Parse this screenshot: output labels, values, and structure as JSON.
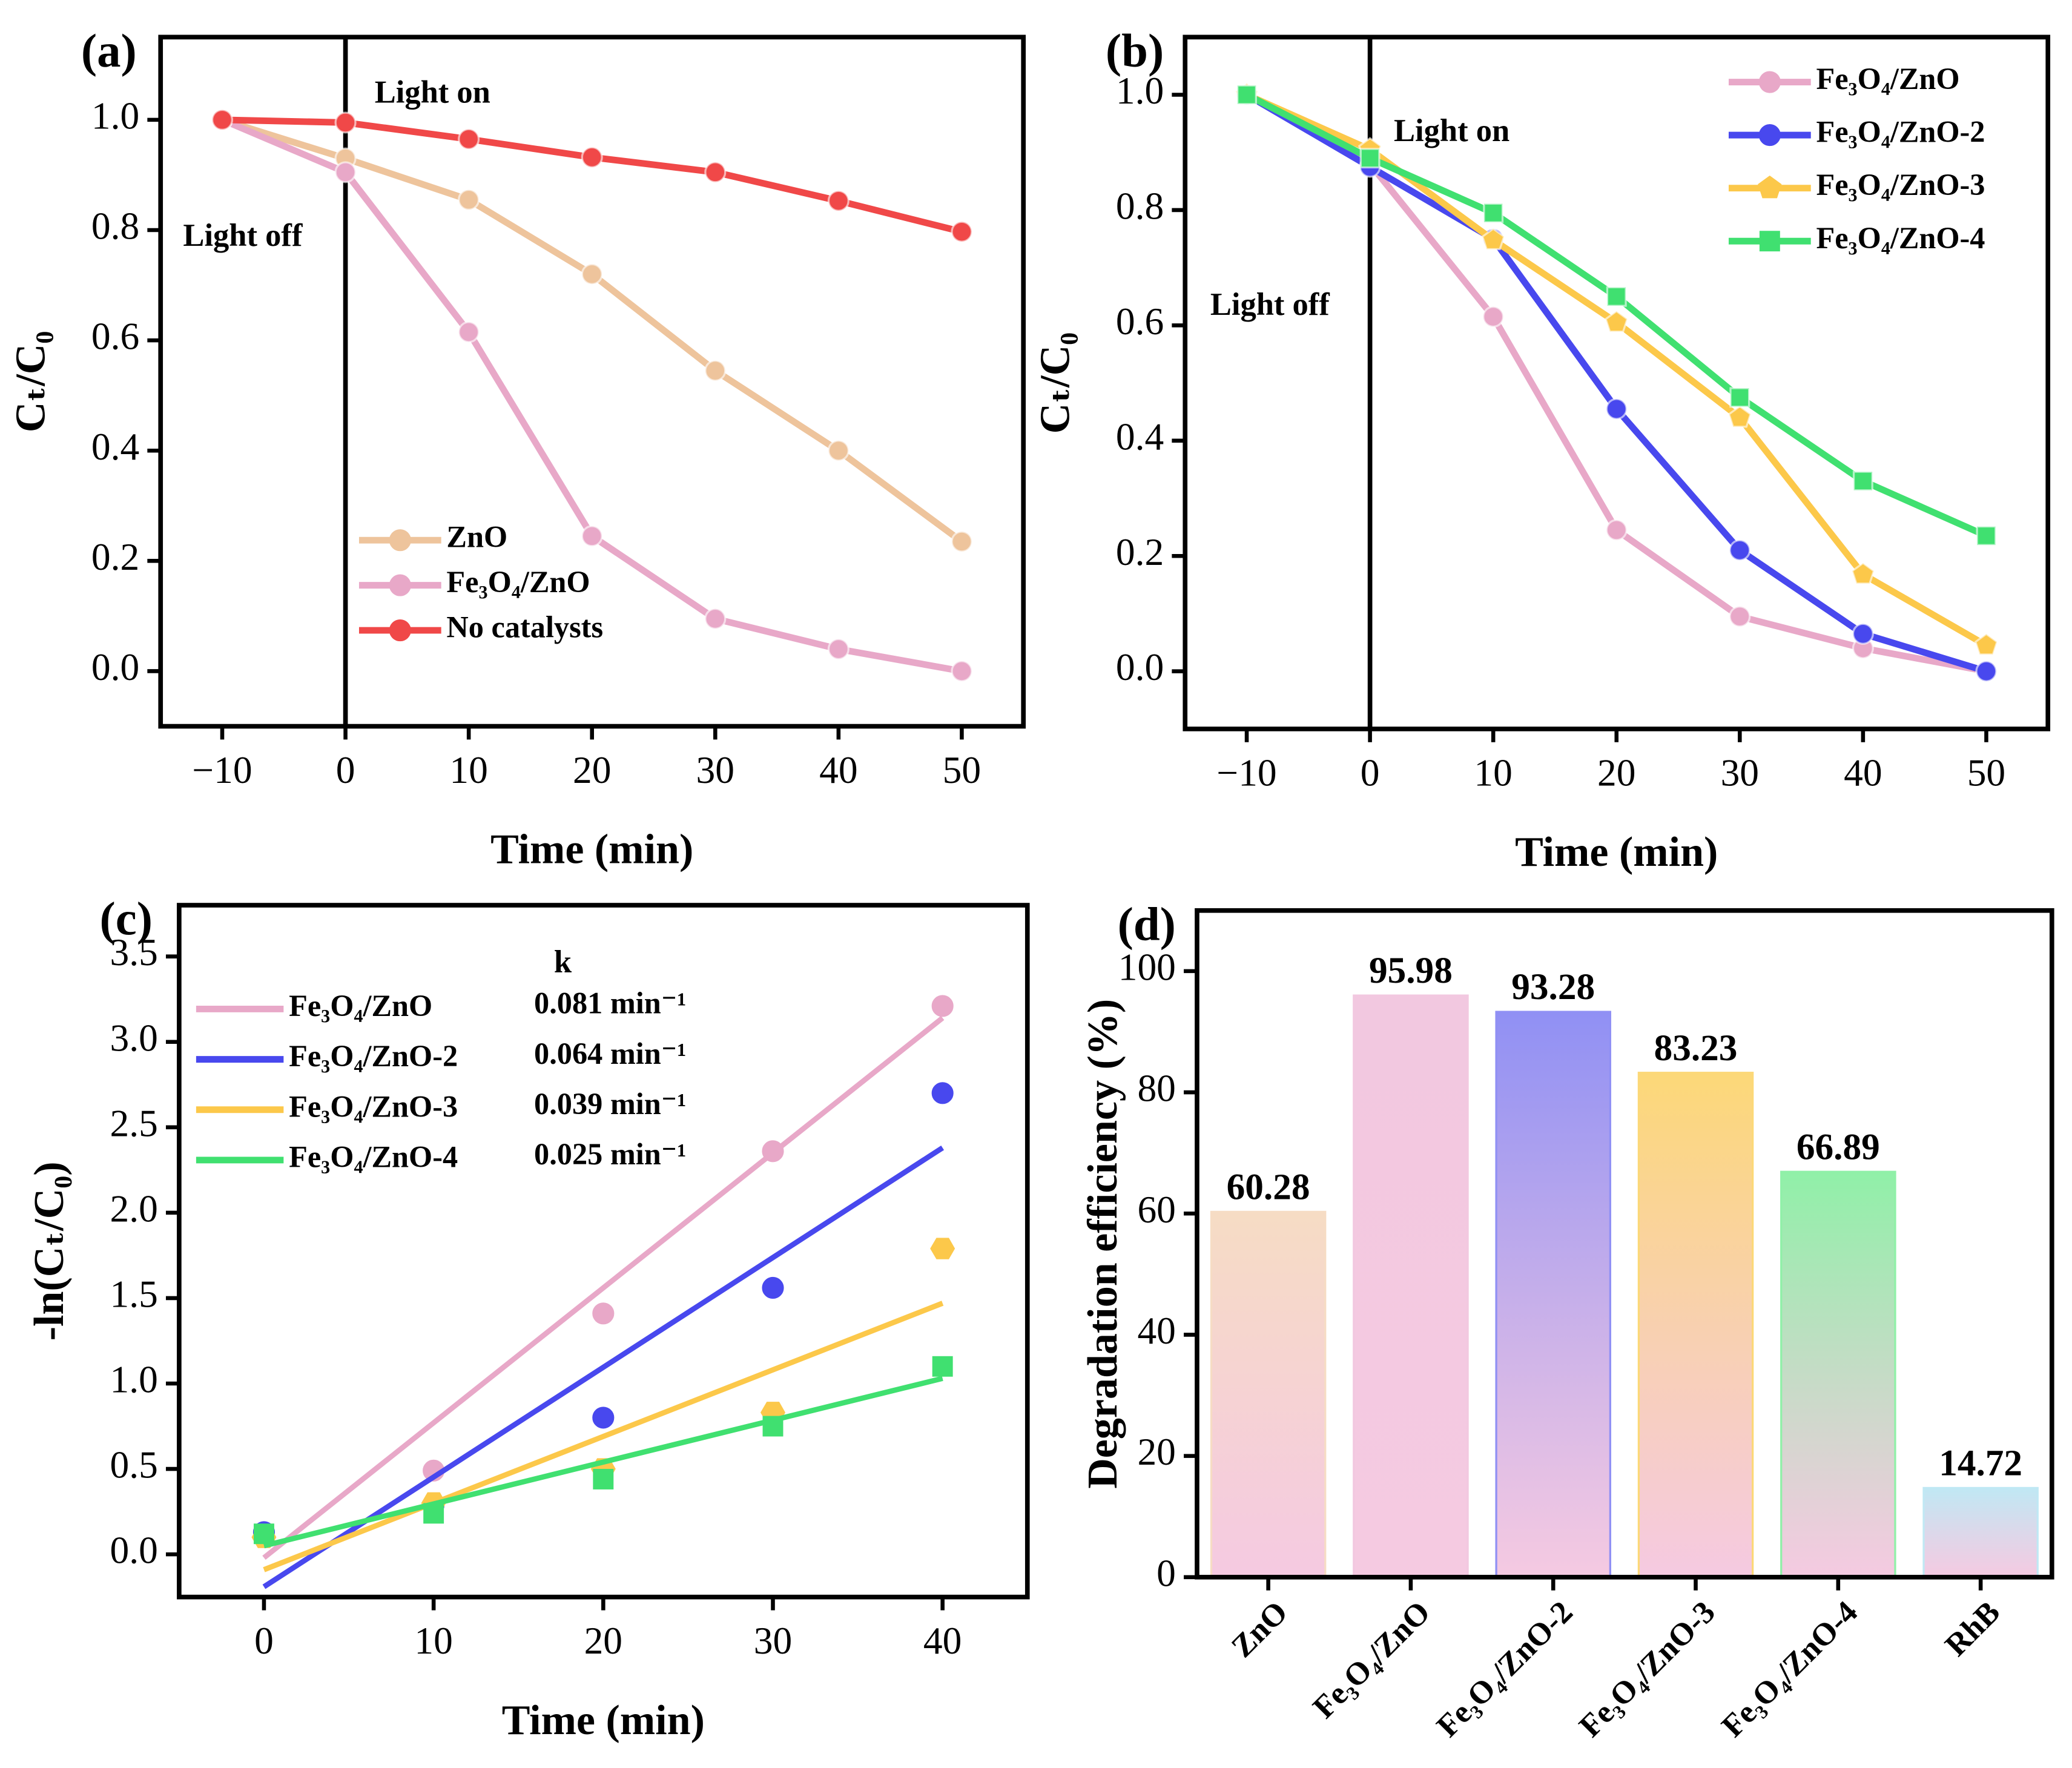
{
  "chart_data": [
    {
      "type": "line",
      "panel": "(a)",
      "xlabel": "Time (min)",
      "ylabel": "Cₜ/C₀",
      "x": [
        -10,
        0,
        10,
        20,
        30,
        40,
        50
      ],
      "series": [
        {
          "name": "ZnO",
          "color": "#eec49c",
          "marker": "circle",
          "values": [
            1.0,
            0.93,
            0.855,
            0.72,
            0.545,
            0.4,
            0.235
          ]
        },
        {
          "name": "Fe₃O₄/ZnO",
          "color": "#e8a8c8",
          "marker": "circle",
          "values": [
            1.0,
            0.905,
            0.615,
            0.245,
            0.095,
            0.04,
            0.0
          ]
        },
        {
          "name": "No catalysts",
          "color": "#f04848",
          "marker": "circle",
          "values": [
            1.0,
            0.995,
            0.965,
            0.932,
            0.905,
            0.853,
            0.797
          ]
        }
      ],
      "xlim": [
        -15,
        55
      ],
      "xticks": [
        {
          "value": -10,
          "label": "−10"
        },
        0,
        10,
        20,
        30,
        40,
        50
      ],
      "ylim": [
        -0.1,
        1.15
      ],
      "yticks": [
        {
          "value": 0,
          "label": "0.0"
        },
        0.2,
        0.4,
        0.6,
        0.8,
        {
          "value": 1,
          "label": "1.0"
        }
      ],
      "vline": 0,
      "annotations": [
        "Light on",
        "Light off"
      ],
      "legend": "lower center"
    },
    {
      "type": "line",
      "panel": "(b)",
      "xlabel": "Time (min)",
      "ylabel": "Cₜ/C₀",
      "x": [
        -10,
        0,
        10,
        20,
        30,
        40,
        50
      ],
      "series": [
        {
          "name": "Fe₃O₄/ZnO",
          "color": "#e8a8c8",
          "marker": "circle",
          "values": [
            1.0,
            0.88,
            0.615,
            0.245,
            0.095,
            0.04,
            0.0
          ]
        },
        {
          "name": "Fe₃O₄/ZnO-2",
          "color": "#4848ee",
          "marker": "circle",
          "values": [
            1.0,
            0.875,
            0.75,
            0.455,
            0.21,
            0.065,
            0.0
          ]
        },
        {
          "name": "Fe₃O₄/ZnO-3",
          "color": "#fcc84a",
          "marker": "diamond",
          "values": [
            1.0,
            0.905,
            0.748,
            0.605,
            0.44,
            0.168,
            0.045
          ]
        },
        {
          "name": "Fe₃O₄/ZnO-4",
          "color": "#40e070",
          "marker": "square",
          "values": [
            1.0,
            0.89,
            0.795,
            0.65,
            0.475,
            0.33,
            0.235
          ]
        }
      ],
      "xlim": [
        -15,
        55
      ],
      "xticks": [
        {
          "value": -10,
          "label": "−10"
        },
        0,
        10,
        20,
        30,
        40,
        50
      ],
      "ylim": [
        -0.1,
        1.1
      ],
      "yticks": [
        {
          "value": 0,
          "label": "0.0"
        },
        0.2,
        0.4,
        0.6,
        0.8,
        {
          "value": 1,
          "label": "1.0"
        }
      ],
      "vline": 0,
      "annotations": [
        "Light on",
        "Light off"
      ],
      "legend": "upper right"
    },
    {
      "type": "scatter",
      "panel": "(c)",
      "xlabel": "Time (min)",
      "ylabel": "-ln(Cₜ/C₀)",
      "x": [
        0,
        10,
        20,
        30,
        40
      ],
      "series": [
        {
          "name": "Fe₃O₄/ZnO",
          "color": "#e8a8c8",
          "marker": "circle",
          "values": [
            0.11,
            0.49,
            1.41,
            2.36,
            3.21
          ],
          "fit": [
            -0.02,
            3.14
          ],
          "k": "0.081 min⁻¹"
        },
        {
          "name": "Fe₃O₄/ZnO-2",
          "color": "#4848ee",
          "marker": "circle",
          "values": [
            0.13,
            0.29,
            0.8,
            1.56,
            2.7
          ],
          "fit": [
            -0.19,
            2.38
          ],
          "k": "0.064 min⁻¹"
        },
        {
          "name": "Fe₃O₄/ZnO-3",
          "color": "#fcc84a",
          "marker": "hexagon",
          "values": [
            0.1,
            0.3,
            0.5,
            0.83,
            1.79
          ],
          "fit": [
            -0.09,
            1.47
          ],
          "k": "0.039 min⁻¹"
        },
        {
          "name": "Fe₃O₄/ZnO-4",
          "color": "#40e070",
          "marker": "square",
          "values": [
            0.12,
            0.24,
            0.44,
            0.75,
            1.1
          ],
          "fit": [
            0.05,
            1.03
          ],
          "k": "0.025 min⁻¹"
        }
      ],
      "xlim": [
        -5,
        45
      ],
      "xticks": [
        0,
        10,
        20,
        30,
        40
      ],
      "ylim": [
        -0.25,
        3.8
      ],
      "yticks": [
        {
          "value": 0,
          "label": "0.0"
        },
        0.5,
        {
          "value": 1,
          "label": "1.0"
        },
        1.5,
        {
          "value": 2,
          "label": "2.0"
        },
        2.5,
        {
          "value": 3,
          "label": "3.0"
        },
        3.5
      ],
      "legend_title": "k",
      "legend": "upper left"
    },
    {
      "type": "bar",
      "panel": "(d)",
      "ylabel": "Degradation efficiency (%)",
      "categories": [
        "ZnO",
        "Fe₃O₄/ZnO",
        "Fe₃O₄/ZnO-2",
        "Fe₃O₄/ZnO-3",
        "Fe₃O₄/ZnO-4",
        "RhB"
      ],
      "values": [
        60.28,
        95.98,
        93.28,
        83.23,
        66.89,
        14.72
      ],
      "colors": [
        "#f6dcc4",
        "#f2c8e0",
        "#9090f4",
        "#fcd878",
        "#90f0a8",
        "#c0e8f4"
      ],
      "ylim": [
        0,
        110
      ],
      "yticks": [
        0,
        20,
        40,
        60,
        80,
        100
      ]
    }
  ]
}
